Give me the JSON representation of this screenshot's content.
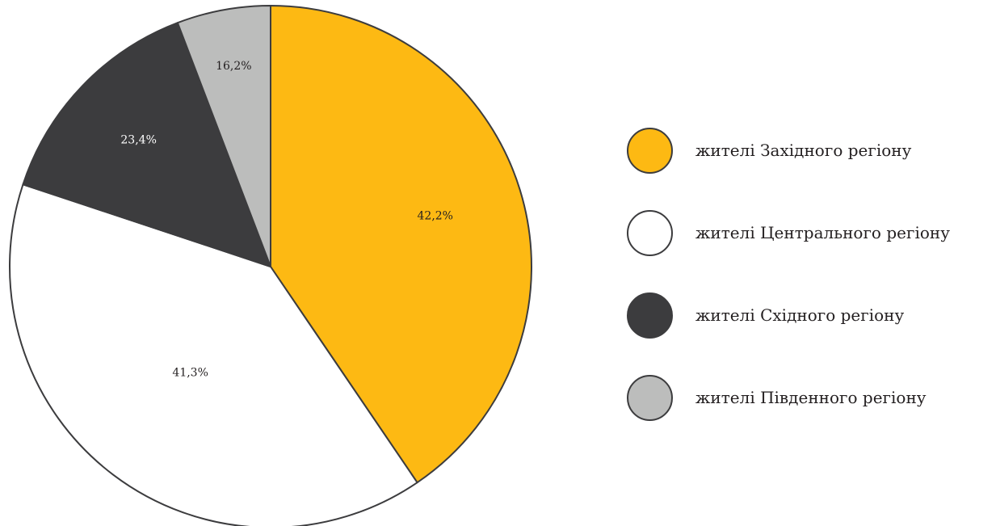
{
  "chart_data": {
    "type": "pie",
    "title": "",
    "start_angle_deg": 0,
    "direction": "clockwise",
    "slices": [
      {
        "name": "жителі Західного регіону",
        "label": "42,2%",
        "value": 40.5,
        "color": "#fdb913",
        "label_color": "#231f20"
      },
      {
        "name": "жителі Центрального регіону",
        "label": "41,3%",
        "value": 39.6,
        "color": "#ffffff",
        "label_color": "#231f20"
      },
      {
        "name": "жителі Східного регіону",
        "label": "23,4%",
        "value": 14.1,
        "color": "#3c3c3e",
        "label_color": "#ffffff"
      },
      {
        "name": "жителі Південного регіону",
        "label": "16,2%",
        "value": 5.8,
        "color": "#bcbdbc",
        "label_color": "#231f20"
      }
    ],
    "legend_position": "right",
    "stroke_color": "#3c3c3e"
  },
  "legend": {
    "items": [
      {
        "label": "жителі Західного регіону",
        "color": "#fdb913"
      },
      {
        "label": "жителі Центрального регіону",
        "color": "#ffffff"
      },
      {
        "label": "жителі Східного регіону",
        "color": "#3c3c3e"
      },
      {
        "label": "жителі Південного регіону",
        "color": "#bcbdbc"
      }
    ]
  }
}
